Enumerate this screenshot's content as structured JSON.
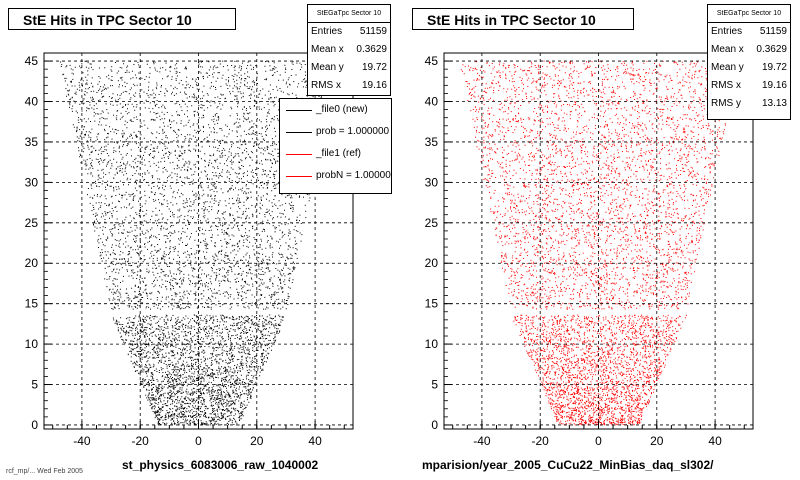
{
  "panels": [
    {
      "title": "StE Hits in TPC Sector 10",
      "color": "#000000",
      "xtitle": "st_physics_6083006_raw_1040002",
      "stats": {
        "header": "StEGaTpc Sector 10",
        "rows": [
          {
            "label": "Entries",
            "value": "51159"
          },
          {
            "label": "Mean x",
            "value": "0.3629"
          },
          {
            "label": "Mean y",
            "value": "19.72"
          },
          {
            "label": "RMS x",
            "value": "19.16"
          }
        ]
      },
      "legend": [
        {
          "label": "_file0 (new)",
          "color": "#000000"
        },
        {
          "label": "prob = 1.000000",
          "color": "#000000"
        },
        {
          "label": "_file1 (ref)",
          "color": "#ff0000"
        },
        {
          "label": "probN = 1.000000",
          "color": "#ff0000"
        }
      ]
    },
    {
      "title": "StE Hits in TPC Sector 10",
      "color": "#ff0000",
      "xtitle": "mparision/year_2005_CuCu22_MinBias_daq_sl302/",
      "stats": {
        "header": "StEGaTpc Sector 10",
        "rows": [
          {
            "label": "Entries",
            "value": "51159"
          },
          {
            "label": "Mean x",
            "value": "0.3629"
          },
          {
            "label": "Mean y",
            "value": "19.72"
          },
          {
            "label": "RMS x",
            "value": "19.16"
          },
          {
            "label": "RMS y",
            "value": "13.13"
          }
        ]
      }
    }
  ],
  "footnote": "rcf_mp/...  Wed Feb 2005",
  "chart_data": [
    {
      "type": "scatter",
      "title": "StE Hits in TPC Sector 10",
      "xlabel": "st_physics_6083006_raw_1040002",
      "xlim": [
        -53,
        53
      ],
      "ylim": [
        -0.5,
        46
      ],
      "xticks": [
        -40,
        -20,
        0,
        20,
        40
      ],
      "yticks": [
        0,
        5,
        10,
        15,
        20,
        25,
        30,
        35,
        40,
        45
      ],
      "grid": true,
      "legend_position": "top-right",
      "series": [
        {
          "name": "_file0 (new)",
          "color": "#000000"
        }
      ],
      "outline": {
        "y": [
          0,
          13.5,
          14,
          45
        ],
        "halfwidth": [
          14,
          30,
          30,
          48
        ]
      },
      "stats": {
        "entries": 51159,
        "mean_x": 0.3629,
        "mean_y": 19.72,
        "rms_x": 19.16
      }
    },
    {
      "type": "scatter",
      "title": "StE Hits in TPC Sector 10",
      "xlabel": "mparision/year_2005_CuCu22_MinBias_daq_sl302/",
      "xlim": [
        -53,
        53
      ],
      "ylim": [
        -0.5,
        46
      ],
      "xticks": [
        -40,
        -20,
        0,
        20,
        40
      ],
      "yticks": [
        0,
        5,
        10,
        15,
        20,
        25,
        30,
        35,
        40,
        45
      ],
      "grid": true,
      "series": [
        {
          "name": "_file1 (ref)",
          "color": "#ff0000"
        }
      ],
      "outline": {
        "y": [
          0,
          13.5,
          14,
          45
        ],
        "halfwidth": [
          14,
          30,
          30,
          48
        ]
      },
      "stats": {
        "entries": 51159,
        "mean_x": 0.3629,
        "mean_y": 19.72,
        "rms_x": 19.16,
        "rms_y": 13.13
      }
    }
  ]
}
